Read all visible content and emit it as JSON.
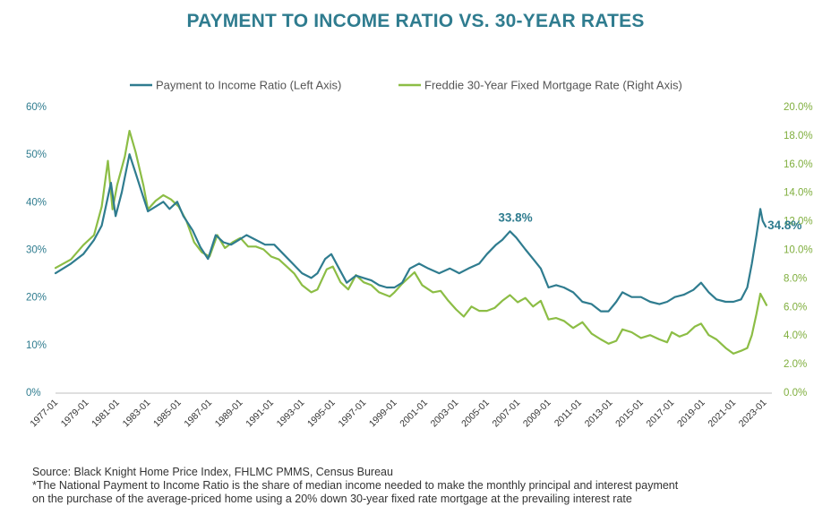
{
  "chart_data": {
    "type": "line",
    "title": "PAYMENT TO INCOME RATIO VS. 30-YEAR RATES",
    "legend_position": "top",
    "grid": false,
    "x_tick_labels": [
      "1977-01",
      "1979-01",
      "1981-01",
      "1983-01",
      "1985-01",
      "1987-01",
      "1989-01",
      "1991-01",
      "1993-01",
      "1995-01",
      "1997-01",
      "1999-01",
      "2001-01",
      "2003-01",
      "2005-01",
      "2007-01",
      "2009-01",
      "2011-01",
      "2013-01",
      "2015-01",
      "2017-01",
      "2019-01",
      "2021-01",
      "2023-01"
    ],
    "xlim": [
      1977.0,
      2023.5
    ],
    "left_axis": {
      "ylim": [
        0,
        60
      ],
      "tick_labels": [
        "0%",
        "10%",
        "20%",
        "30%",
        "40%",
        "50%",
        "60%"
      ]
    },
    "right_axis": {
      "ylim": [
        0,
        20
      ],
      "tick_labels": [
        "0.0%",
        "2.0%",
        "4.0%",
        "6.0%",
        "8.0%",
        "10.0%",
        "12.0%",
        "14.0%",
        "16.0%",
        "18.0%",
        "20.0%"
      ]
    },
    "series": [
      {
        "name": "Payment to Income Ratio (Left Axis)",
        "axis": "left",
        "color": "#2f7c8f",
        "points": [
          [
            1977.0,
            25
          ],
          [
            1978.0,
            27
          ],
          [
            1978.8,
            29
          ],
          [
            1979.5,
            32
          ],
          [
            1980.0,
            35
          ],
          [
            1980.6,
            44
          ],
          [
            1980.9,
            37
          ],
          [
            1981.3,
            42
          ],
          [
            1981.8,
            50
          ],
          [
            1982.2,
            46
          ],
          [
            1982.6,
            42
          ],
          [
            1983.0,
            38
          ],
          [
            1983.5,
            39
          ],
          [
            1984.0,
            40
          ],
          [
            1984.4,
            38.5
          ],
          [
            1984.9,
            40
          ],
          [
            1985.3,
            37
          ],
          [
            1985.9,
            34
          ],
          [
            1986.4,
            30.5
          ],
          [
            1986.9,
            28
          ],
          [
            1987.4,
            33
          ],
          [
            1987.9,
            31.5
          ],
          [
            1988.4,
            31
          ],
          [
            1988.9,
            32
          ],
          [
            1989.4,
            33
          ],
          [
            1990.0,
            32
          ],
          [
            1990.6,
            31
          ],
          [
            1991.2,
            31
          ],
          [
            1991.8,
            29
          ],
          [
            1992.4,
            27
          ],
          [
            1993.0,
            25
          ],
          [
            1993.6,
            24
          ],
          [
            1994.0,
            25
          ],
          [
            1994.5,
            28
          ],
          [
            1994.9,
            29
          ],
          [
            1995.4,
            26
          ],
          [
            1995.9,
            23
          ],
          [
            1996.5,
            24.5
          ],
          [
            1997.0,
            24
          ],
          [
            1997.5,
            23.5
          ],
          [
            1998.0,
            22.5
          ],
          [
            1998.5,
            22
          ],
          [
            1999.0,
            22
          ],
          [
            1999.5,
            23
          ],
          [
            2000.0,
            26
          ],
          [
            2000.6,
            27
          ],
          [
            2001.2,
            26
          ],
          [
            2001.9,
            25
          ],
          [
            2002.6,
            26
          ],
          [
            2003.2,
            25
          ],
          [
            2003.8,
            26
          ],
          [
            2004.5,
            27
          ],
          [
            2005.0,
            29
          ],
          [
            2005.6,
            31
          ],
          [
            2006.0,
            32
          ],
          [
            2006.5,
            33.8
          ],
          [
            2006.9,
            32.5
          ],
          [
            2007.5,
            30
          ],
          [
            2008.0,
            28
          ],
          [
            2008.5,
            26
          ],
          [
            2009.0,
            22
          ],
          [
            2009.5,
            22.5
          ],
          [
            2010.0,
            22
          ],
          [
            2010.6,
            21
          ],
          [
            2011.2,
            19
          ],
          [
            2011.8,
            18.5
          ],
          [
            2012.4,
            17
          ],
          [
            2012.9,
            17
          ],
          [
            2013.4,
            19
          ],
          [
            2013.8,
            21
          ],
          [
            2014.4,
            20
          ],
          [
            2015.0,
            20
          ],
          [
            2015.6,
            19
          ],
          [
            2016.2,
            18.5
          ],
          [
            2016.7,
            19
          ],
          [
            2017.2,
            20
          ],
          [
            2017.8,
            20.5
          ],
          [
            2018.4,
            21.5
          ],
          [
            2018.9,
            23
          ],
          [
            2019.4,
            21
          ],
          [
            2019.9,
            19.5
          ],
          [
            2020.5,
            19
          ],
          [
            2021.0,
            19
          ],
          [
            2021.5,
            19.5
          ],
          [
            2021.9,
            22
          ],
          [
            2022.2,
            27
          ],
          [
            2022.5,
            33
          ],
          [
            2022.75,
            38.5
          ],
          [
            2022.9,
            36
          ],
          [
            2023.1,
            34.8
          ]
        ],
        "annotations": [
          {
            "label": "33.8%",
            "x": 2006.5,
            "y": 33.8
          },
          {
            "label": "34.8%",
            "x": 2023.1,
            "y": 34.8
          }
        ]
      },
      {
        "name": "Freddie 30-Year Fixed Mortgage Rate (Right Axis)",
        "axis": "right",
        "color": "#8cbd45",
        "points": [
          [
            1977.0,
            8.7
          ],
          [
            1978.0,
            9.3
          ],
          [
            1978.8,
            10.3
          ],
          [
            1979.5,
            11.0
          ],
          [
            1980.0,
            13.0
          ],
          [
            1980.4,
            16.2
          ],
          [
            1980.7,
            12.8
          ],
          [
            1981.0,
            14.5
          ],
          [
            1981.5,
            16.5
          ],
          [
            1981.8,
            18.3
          ],
          [
            1982.2,
            16.8
          ],
          [
            1982.7,
            14.5
          ],
          [
            1983.0,
            12.8
          ],
          [
            1983.5,
            13.4
          ],
          [
            1984.0,
            13.8
          ],
          [
            1984.5,
            13.5
          ],
          [
            1985.0,
            13.0
          ],
          [
            1985.5,
            12.0
          ],
          [
            1986.0,
            10.5
          ],
          [
            1986.5,
            9.8
          ],
          [
            1987.0,
            9.5
          ],
          [
            1987.5,
            11.0
          ],
          [
            1988.0,
            10.1
          ],
          [
            1988.5,
            10.5
          ],
          [
            1989.0,
            10.8
          ],
          [
            1989.5,
            10.2
          ],
          [
            1990.0,
            10.2
          ],
          [
            1990.5,
            10.0
          ],
          [
            1991.0,
            9.5
          ],
          [
            1991.5,
            9.3
          ],
          [
            1992.0,
            8.8
          ],
          [
            1992.5,
            8.3
          ],
          [
            1993.0,
            7.5
          ],
          [
            1993.6,
            7.0
          ],
          [
            1994.0,
            7.2
          ],
          [
            1994.6,
            8.6
          ],
          [
            1995.0,
            8.8
          ],
          [
            1995.5,
            7.7
          ],
          [
            1996.0,
            7.2
          ],
          [
            1996.5,
            8.2
          ],
          [
            1997.0,
            7.7
          ],
          [
            1997.5,
            7.5
          ],
          [
            1998.0,
            7.0
          ],
          [
            1998.7,
            6.7
          ],
          [
            1999.0,
            7.0
          ],
          [
            1999.5,
            7.6
          ],
          [
            2000.3,
            8.4
          ],
          [
            2000.8,
            7.5
          ],
          [
            2001.5,
            7.0
          ],
          [
            2002.0,
            7.1
          ],
          [
            2002.5,
            6.4
          ],
          [
            2003.0,
            5.8
          ],
          [
            2003.5,
            5.3
          ],
          [
            2004.0,
            6.0
          ],
          [
            2004.5,
            5.7
          ],
          [
            2005.0,
            5.7
          ],
          [
            2005.5,
            5.9
          ],
          [
            2006.0,
            6.4
          ],
          [
            2006.5,
            6.8
          ],
          [
            2007.0,
            6.3
          ],
          [
            2007.5,
            6.6
          ],
          [
            2008.0,
            6.0
          ],
          [
            2008.5,
            6.4
          ],
          [
            2009.0,
            5.1
          ],
          [
            2009.5,
            5.2
          ],
          [
            2010.0,
            5.0
          ],
          [
            2010.6,
            4.5
          ],
          [
            2011.2,
            4.9
          ],
          [
            2011.8,
            4.1
          ],
          [
            2012.4,
            3.7
          ],
          [
            2012.9,
            3.4
          ],
          [
            2013.4,
            3.6
          ],
          [
            2013.8,
            4.4
          ],
          [
            2014.4,
            4.2
          ],
          [
            2015.0,
            3.8
          ],
          [
            2015.6,
            4.0
          ],
          [
            2016.2,
            3.7
          ],
          [
            2016.7,
            3.5
          ],
          [
            2017.0,
            4.2
          ],
          [
            2017.5,
            3.9
          ],
          [
            2018.0,
            4.1
          ],
          [
            2018.5,
            4.6
          ],
          [
            2018.9,
            4.8
          ],
          [
            2019.4,
            4.0
          ],
          [
            2019.9,
            3.7
          ],
          [
            2020.5,
            3.1
          ],
          [
            2021.0,
            2.7
          ],
          [
            2021.5,
            2.9
          ],
          [
            2021.9,
            3.1
          ],
          [
            2022.2,
            4.0
          ],
          [
            2022.5,
            5.5
          ],
          [
            2022.75,
            6.9
          ],
          [
            2023.0,
            6.4
          ],
          [
            2023.15,
            6.1
          ]
        ]
      }
    ]
  },
  "footnote": {
    "source": "Source: Black Knight Home Price Index, FHLMC PMMS, Census Bureau",
    "line1": "*The National Payment to Income Ratio is the share of median income needed to make the monthly principal and interest payment",
    "line2": "on the purchase of the average-priced home using a 20% down 30-year fixed rate mortgage at the prevailing interest rate"
  }
}
